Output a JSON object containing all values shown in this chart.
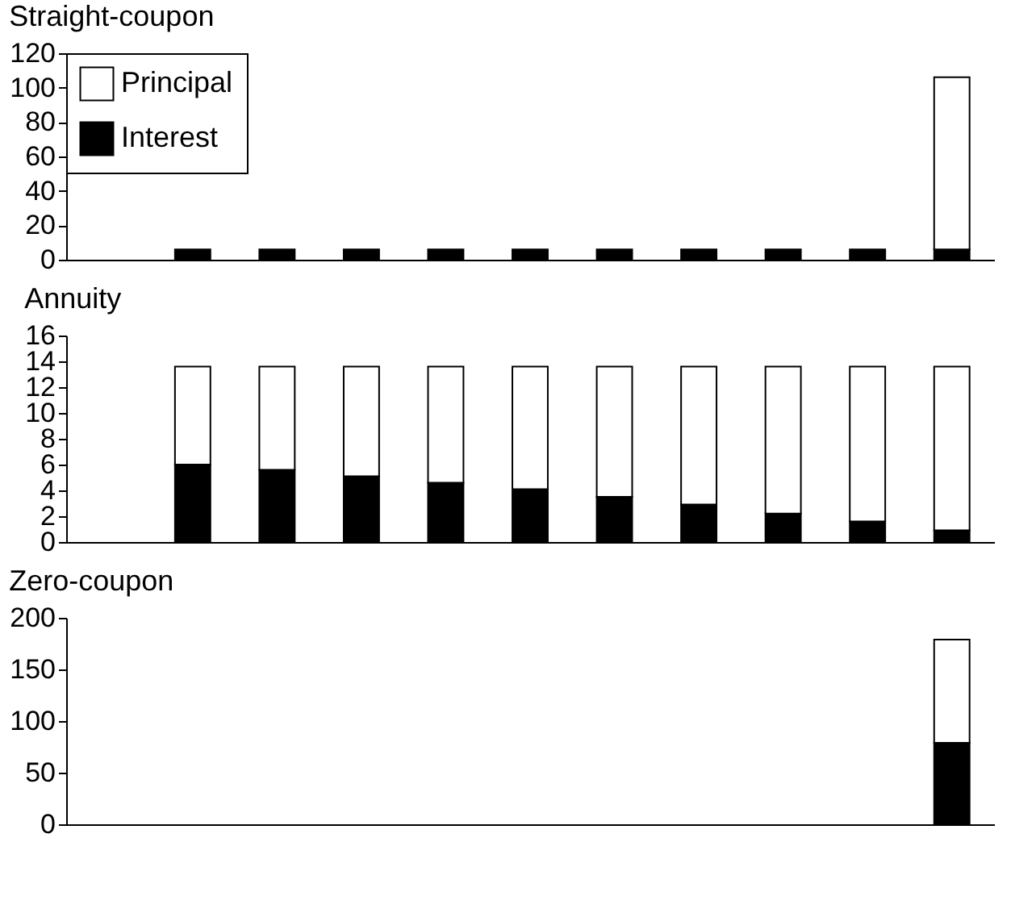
{
  "chart_data": [
    {
      "type": "bar",
      "title": "Straight-coupon",
      "categories": [
        null,
        null,
        null,
        null,
        null,
        null,
        null,
        null,
        null,
        null,
        null
      ],
      "stacked": true,
      "ylim": [
        0,
        120
      ],
      "yticks": [
        0,
        20,
        40,
        60,
        80,
        100,
        120
      ],
      "tick_labels": "y",
      "grid": false,
      "legend": "top left",
      "series": [
        {
          "name": "Interest",
          "color": "#000000",
          "values": [
            null,
            6,
            6,
            6,
            6,
            6,
            6,
            6,
            6,
            6,
            6
          ]
        },
        {
          "name": "Principal",
          "color": "#ffffff",
          "values": [
            null,
            null,
            null,
            null,
            null,
            null,
            null,
            null,
            null,
            null,
            100
          ]
        }
      ]
    },
    {
      "type": "bar",
      "title": "Annuity",
      "categories": [
        null,
        null,
        null,
        null,
        null,
        null,
        null,
        null,
        null,
        null,
        null
      ],
      "stacked": true,
      "ylim": [
        0,
        16
      ],
      "yticks": [
        0,
        2,
        4,
        6,
        8,
        10,
        12,
        14,
        16
      ],
      "tick_labels": "y",
      "grid": false,
      "series": [
        {
          "color": "#000000",
          "values": [
            null,
            6.0,
            5.6,
            5.1,
            4.6,
            4.1,
            3.5,
            2.9,
            2.2,
            1.6,
            0.9
          ]
        },
        {
          "color": "#ffffff",
          "values": [
            null,
            7.6,
            8.0,
            8.5,
            9.0,
            9.5,
            10.1,
            10.7,
            11.4,
            12.0,
            12.7
          ]
        }
      ]
    },
    {
      "type": "bar",
      "title": "Zero-coupon",
      "categories": [
        null,
        null,
        null,
        null,
        null,
        null,
        null,
        null,
        null,
        null,
        null
      ],
      "stacked": true,
      "ylim": [
        0,
        200
      ],
      "yticks": [
        0,
        50,
        100,
        150,
        200
      ],
      "tick_labels": "y",
      "grid": false,
      "series": [
        {
          "color": "#000000",
          "values": [
            null,
            null,
            null,
            null,
            null,
            null,
            null,
            null,
            null,
            null,
            79
          ]
        },
        {
          "color": "#ffffff",
          "values": [
            null,
            null,
            null,
            null,
            null,
            null,
            null,
            null,
            null,
            null,
            100
          ]
        }
      ]
    }
  ]
}
